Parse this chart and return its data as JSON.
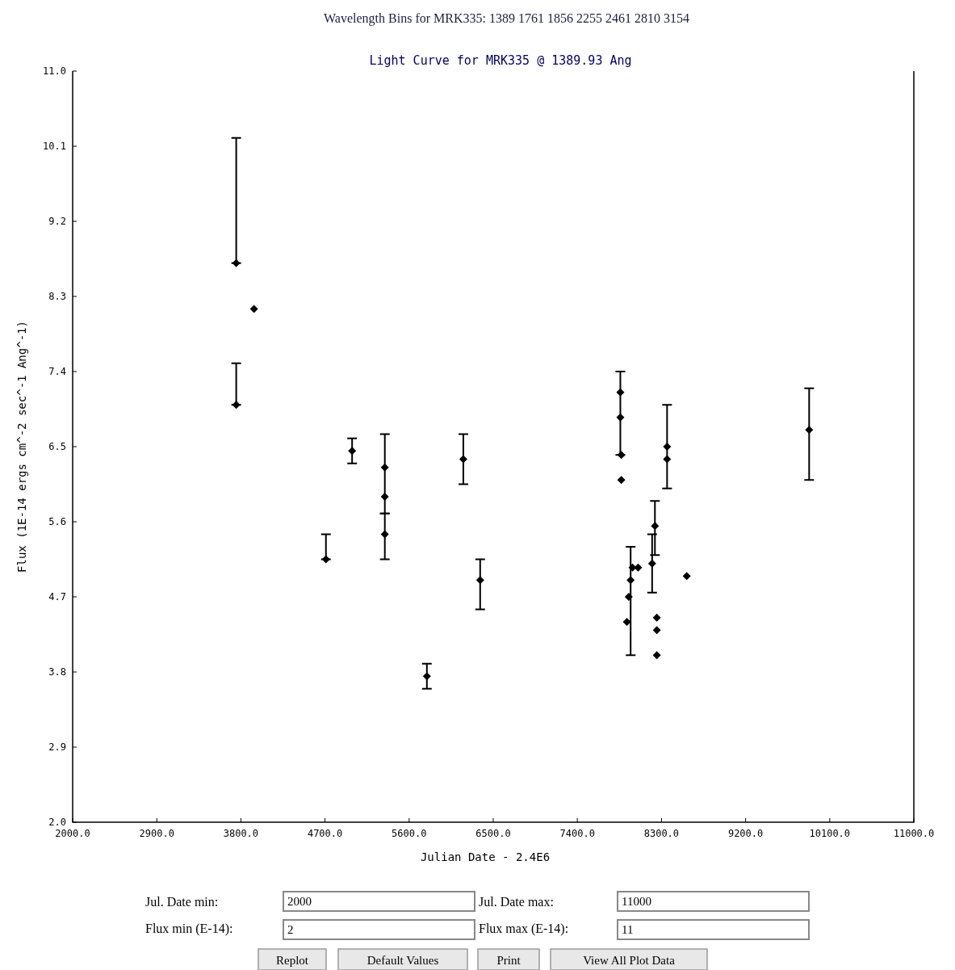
{
  "chart_data": {
    "type": "scatter",
    "title": "Light Curve for MRK335 @ 1389.93 Ang",
    "xlabel": "Julian Date - 2.4E6",
    "ylabel": "Flux (1E-14 ergs cm^-2 sec^-1 Ang^-1)",
    "xlim": [
      2000,
      11000
    ],
    "ylim": [
      2,
      11
    ],
    "xticks": [
      {
        "value": 2000,
        "label": "2000.0"
      },
      {
        "value": 2900,
        "label": "2900.0"
      },
      {
        "value": 3800,
        "label": "3800.0"
      },
      {
        "value": 4700,
        "label": "4700.0"
      },
      {
        "value": 5600,
        "label": "5600.0"
      },
      {
        "value": 6500,
        "label": "6500.0"
      },
      {
        "value": 7400,
        "label": "7400.0"
      },
      {
        "value": 8300,
        "label": "8300.0"
      },
      {
        "value": 9200,
        "label": "9200.0"
      },
      {
        "value": 10100,
        "label": "10100.0"
      },
      {
        "value": 11000,
        "label": "11000.0"
      }
    ],
    "yticks": [
      {
        "value": 2,
        "label": "2.0"
      },
      {
        "value": 2.9,
        "label": "2.9"
      },
      {
        "value": 3.8,
        "label": "3.8"
      },
      {
        "value": 4.7,
        "label": "4.7"
      },
      {
        "value": 5.6,
        "label": "5.6"
      },
      {
        "value": 6.5,
        "label": "6.5"
      },
      {
        "value": 7.4,
        "label": "7.4"
      },
      {
        "value": 8.3,
        "label": "8.3"
      },
      {
        "value": 9.2,
        "label": "9.2"
      },
      {
        "value": 10.1,
        "label": "10.1"
      },
      {
        "value": 11,
        "label": "11.0"
      }
    ],
    "grid": false,
    "marker": "diamond",
    "series": [
      {
        "color": "#000000",
        "x": [
          3750,
          3750,
          3940,
          4710,
          4990,
          5340,
          5340,
          5340,
          5790,
          6180,
          6360,
          7860,
          7860,
          7870,
          7870,
          7930,
          7950,
          7970,
          7990,
          8050,
          8200,
          8230,
          8250,
          8250,
          8250,
          8360,
          8360,
          8570,
          9880
        ],
        "values": [
          8.7,
          7.0,
          8.15,
          5.15,
          6.45,
          6.25,
          5.9,
          5.45,
          3.75,
          6.35,
          4.9,
          7.15,
          6.85,
          6.4,
          6.1,
          4.4,
          4.7,
          4.9,
          5.05,
          5.05,
          5.1,
          5.55,
          4.45,
          4.3,
          4.0,
          6.5,
          6.35,
          4.95,
          6.7
        ],
        "errors": [
          [
            8.7,
            10.2
          ],
          [
            7.0,
            7.5
          ],
          null,
          [
            5.15,
            5.45
          ],
          [
            6.3,
            6.6
          ],
          [
            5.7,
            6.65
          ],
          null,
          [
            5.15,
            5.7
          ],
          [
            3.6,
            3.9
          ],
          [
            6.05,
            6.65
          ],
          [
            4.55,
            5.15
          ],
          [
            6.4,
            7.4
          ],
          null,
          null,
          null,
          null,
          null,
          [
            4.0,
            5.3
          ],
          null,
          null,
          [
            4.75,
            5.45
          ],
          [
            5.2,
            5.85
          ],
          null,
          null,
          null,
          [
            6.0,
            7.0
          ],
          null,
          null,
          [
            6.1,
            7.2
          ]
        ]
      }
    ],
    "annotations": [
      "Wavelength Bins for MRK335: 1389 1761 1856 2255 2461 2810 3154",
      "Jul. Date min:",
      "2000",
      "Jul. Date max:",
      "11000",
      "Flux min (E-14):",
      "2",
      "Flux max (E-14):",
      "11",
      "Replot",
      "Default Values",
      "Print",
      "View All Plot Data"
    ]
  }
}
